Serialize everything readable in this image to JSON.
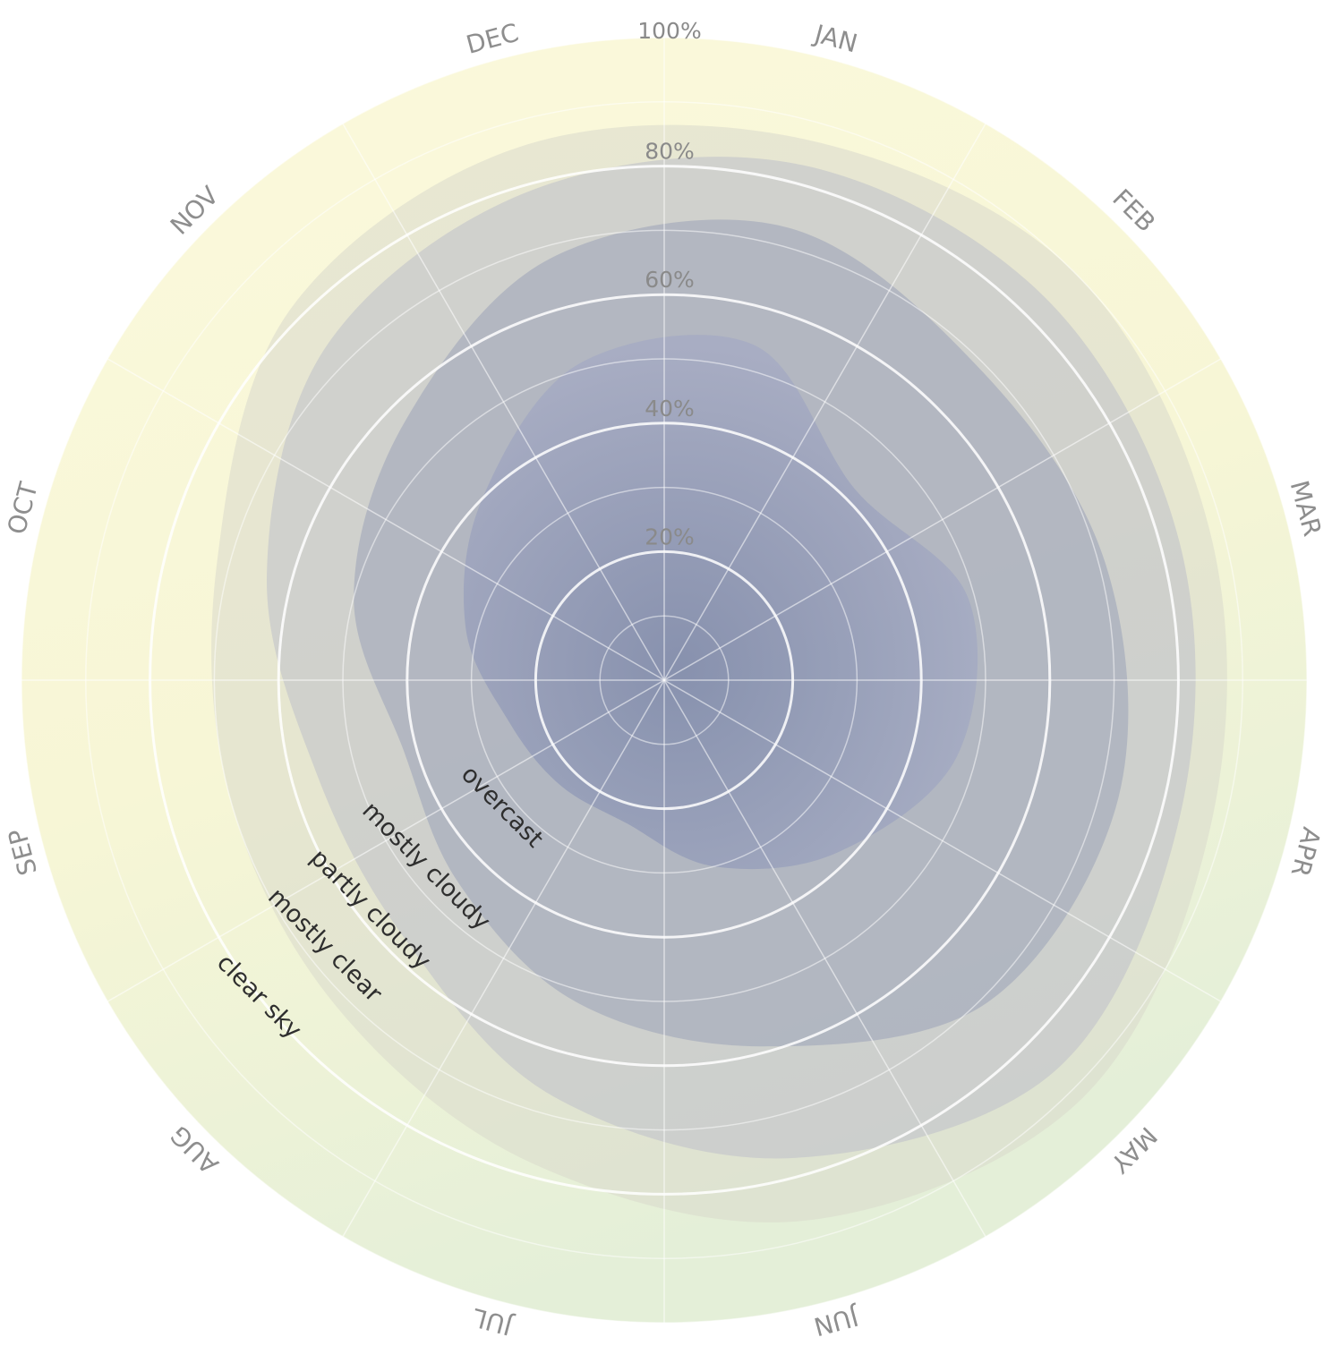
{
  "chart_data": {
    "type": "area",
    "subtype": "polar-stacked-area",
    "title": "",
    "angular_axis": {
      "categories": [
        "JAN",
        "FEB",
        "MAR",
        "APR",
        "MAY",
        "JUN",
        "JUL",
        "AUG",
        "SEP",
        "OCT",
        "NOV",
        "DEC"
      ],
      "direction": "clockwise"
    },
    "radial_axis": {
      "range": [
        0,
        100
      ],
      "tick_labels": [
        "20%",
        "40%",
        "60%",
        "80%",
        "100%"
      ],
      "tick_values": [
        20,
        40,
        60,
        80,
        100
      ],
      "grid": true
    },
    "series": [
      {
        "name": "overcast",
        "values": [
          54,
          42,
          49,
          47,
          38,
          30,
          23,
          23,
          25,
          32,
          40,
          51
        ],
        "color": "#56688f"
      },
      {
        "name": "mostly cloudy",
        "values": [
          73,
          69,
          71,
          73,
          71,
          59,
          52,
          45,
          42,
          50,
          57,
          68
        ],
        "color": "#8a94ac"
      },
      {
        "name": "partly cloudy",
        "values": [
          83,
          84,
          83,
          83,
          86,
          77,
          67,
          57,
          56,
          64,
          74,
          79
        ],
        "color": "#b9bcc4"
      },
      {
        "name": "mostly clear",
        "values": [
          87,
          90,
          88,
          88,
          92,
          87,
          78,
          72,
          70,
          72,
          82,
          86
        ],
        "color": "#dcdccd"
      },
      {
        "name": "clear sky",
        "values": [
          100,
          100,
          100,
          100,
          100,
          100,
          100,
          100,
          100,
          100,
          100,
          100
        ],
        "color": "#f6f5cd"
      }
    ],
    "band_labels": [
      "overcast",
      "mostly cloudy",
      "partly cloudy",
      "mostly clear",
      "clear sky"
    ],
    "colors": {
      "clear_top": "#faf8d6",
      "clear_bottom": "#e6f0d9",
      "grid": "#ffffff",
      "month_text": "#8e8e8e",
      "pct_text": "#8a8a8a",
      "band_text": "#2e2e2e"
    }
  }
}
